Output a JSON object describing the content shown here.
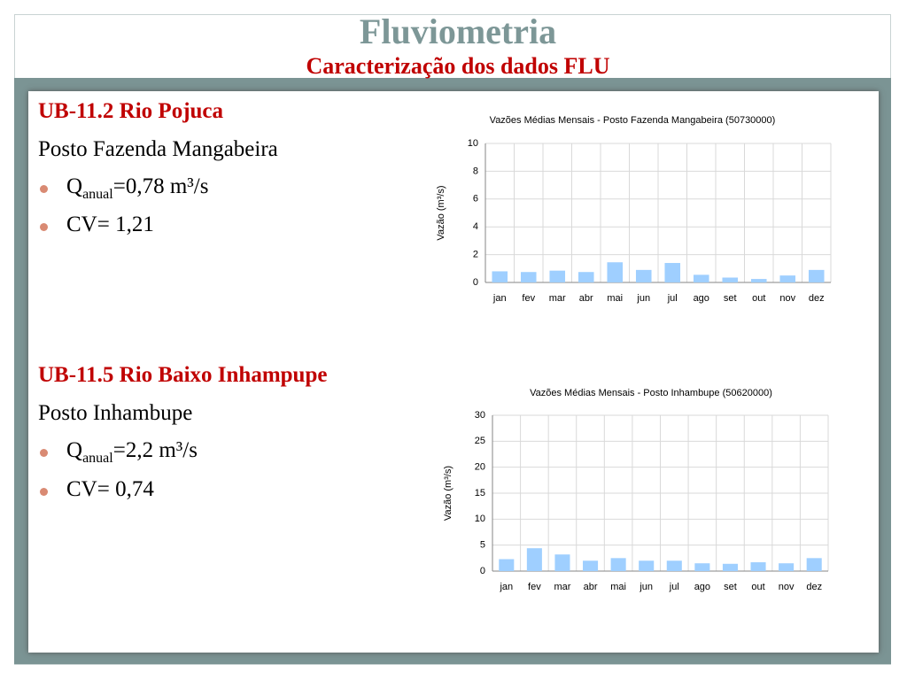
{
  "header": {
    "title": "Fluviometria",
    "subtitle": "Caracterização dos dados FLU"
  },
  "sections": [
    {
      "heading": "UB-11.2 Rio Pojuca",
      "station": "Posto Fazenda Mangabeira",
      "bullets": [
        {
          "main": "Q",
          "sub": "anual",
          "rest": "=0,78 m³/s"
        },
        {
          "main": "CV= 1,21"
        }
      ]
    },
    {
      "heading": "UB-11.5 Rio Baixo Inhampupe",
      "station": "Posto Inhambupe",
      "bullets": [
        {
          "main": "Q",
          "sub": "anual",
          "rest": "=2,2 m³/s"
        },
        {
          "main": "CV= 0,74"
        }
      ]
    }
  ],
  "chart_data": [
    {
      "type": "bar",
      "title": "Vazões Médias Mensais -  Posto Fazenda Mangabeira (50730000)",
      "y_label": "Vazão (m³/s)",
      "categories": [
        "jan",
        "fev",
        "mar",
        "abr",
        "mai",
        "jun",
        "jul",
        "ago",
        "set",
        "out",
        "nov",
        "dez"
      ],
      "values": [
        0.8,
        0.75,
        0.85,
        0.75,
        1.45,
        0.9,
        1.4,
        0.55,
        0.35,
        0.25,
        0.5,
        0.9
      ],
      "color": "#9fcfff",
      "ylim": [
        0,
        10
      ],
      "yticks": [
        0,
        2,
        4,
        6,
        8,
        10
      ],
      "grid": true
    },
    {
      "type": "bar",
      "title": "Vazões Médias Mensais -  Posto Inhambupe (50620000)",
      "y_label": "Vazão (m³/s)",
      "categories": [
        "jan",
        "fev",
        "mar",
        "abr",
        "mai",
        "jun",
        "jul",
        "ago",
        "set",
        "out",
        "nov",
        "dez"
      ],
      "values": [
        2.3,
        4.4,
        3.2,
        2.0,
        2.5,
        2.0,
        2.0,
        1.5,
        1.4,
        1.7,
        1.5,
        2.5
      ],
      "color": "#9fcfff",
      "ylim": [
        0,
        30
      ],
      "yticks": [
        0,
        5,
        10,
        15,
        20,
        25,
        30
      ],
      "grid": true
    }
  ]
}
